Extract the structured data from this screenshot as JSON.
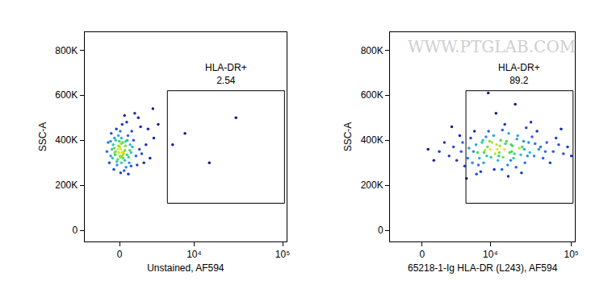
{
  "chart_data": [
    {
      "type": "scatter",
      "xlabel": "Unstained, AF594",
      "ylabel": "SSC-A",
      "x": [
        -300,
        200,
        -500,
        100,
        400,
        -200,
        600,
        -100,
        300,
        0,
        -700,
        800,
        150,
        -400,
        500,
        -50,
        250,
        -600,
        700,
        50,
        1000,
        -800,
        350,
        -250,
        900,
        -150,
        450,
        -350,
        650,
        120,
        1300,
        -900,
        1600,
        200,
        -450,
        1100,
        750,
        -650,
        1800,
        80,
        2200,
        -1000,
        1400,
        550,
        -300,
        2600,
        950,
        -120,
        320,
        30,
        3000,
        1700,
        2000,
        380,
        -550,
        1200,
        2400,
        680,
        -20,
        260,
        5500,
        7800,
        15000,
        30000,
        3500,
        180,
        -80,
        420,
        -380,
        580,
        2900,
        1500,
        820,
        -220,
        140,
        -700,
        900,
        60,
        -420,
        480
      ],
      "values": [
        350000,
        330000,
        380000,
        360000,
        310000,
        290000,
        400000,
        420000,
        340000,
        370000,
        330000,
        355000,
        300000,
        410000,
        280000,
        345000,
        390000,
        360000,
        325000,
        440000,
        370000,
        300000,
        265000,
        450000,
        345000,
        315000,
        375000,
        335000,
        420000,
        385000,
        330000,
        390000,
        360000,
        470000,
        270000,
        400000,
        300000,
        430000,
        340000,
        255000,
        380000,
        350000,
        290000,
        480000,
        400000,
        320000,
        440000,
        360000,
        350000,
        330000,
        410000,
        460000,
        300000,
        510000,
        320000,
        520000,
        450000,
        250000,
        395000,
        320000,
        380000,
        430000,
        300000,
        500000,
        470000,
        345000,
        375000,
        355000,
        345000,
        335000,
        540000,
        500000,
        380000,
        305000,
        410000,
        395000,
        285000,
        325000,
        365000,
        395000
      ],
      "xlim": [
        -3100,
        111000
      ],
      "ylim": [
        -50000,
        880000
      ],
      "xticks": [
        0,
        {
          "value": 10000,
          "label": "10⁴"
        },
        {
          "value": 100000,
          "label": "10⁵"
        }
      ],
      "yticks": [
        0,
        {
          "value": 200000,
          "label": "200K"
        },
        {
          "value": 400000,
          "label": "400K"
        },
        {
          "value": 600000,
          "label": "600K"
        },
        {
          "value": 800000,
          "label": "800K"
        }
      ],
      "grid": false,
      "gate": {
        "label": "HLA-DR+",
        "value": 2.54,
        "x_range": [
          4700,
          105000
        ],
        "y_range": [
          120000,
          620000
        ]
      }
    },
    {
      "type": "scatter",
      "xlabel": "65218-1-Ig HLA-DR (L243), AF594",
      "ylabel": "SSC-A",
      "x": [
        6000,
        9000,
        12000,
        15000,
        8000,
        20000,
        5000,
        25000,
        7000,
        11000,
        18000,
        4000,
        30000,
        10000,
        14000,
        6500,
        22000,
        35000,
        3000,
        9500,
        16000,
        13000,
        40000,
        7500,
        27000,
        5500,
        19000,
        2500,
        50000,
        12500,
        8500,
        17000,
        33000,
        4500,
        10500,
        24000,
        60000,
        6200,
        14500,
        2000,
        21000,
        9200,
        45000,
        11500,
        28000,
        5200,
        15500,
        70000,
        7200,
        18500,
        1500,
        38000,
        13500,
        8200,
        23000,
        80000,
        3800,
        16500,
        31000,
        10200,
        6800,
        26000,
        12200,
        55000,
        4200,
        19500,
        9800,
        90000,
        1000,
        42000,
        14200,
        5800,
        21500,
        11200,
        65000,
        8800,
        29000,
        17500,
        3400,
        48000,
        13200,
        7800,
        36000,
        24500,
        100000,
        500,
        15200,
        6600,
        32000,
        11800,
        20500,
        9400,
        75000,
        4800,
        16800,
        2800,
        26500,
        12800,
        8300,
        18200
      ],
      "values": [
        350000,
        330000,
        380000,
        360000,
        400000,
        340000,
        320000,
        370000,
        290000,
        420000,
        310000,
        350000,
        390000,
        360000,
        270000,
        380000,
        420000,
        330000,
        370000,
        440000,
        395000,
        345000,
        360000,
        260000,
        300000,
        410000,
        375000,
        330000,
        390000,
        310000,
        355000,
        430000,
        415000,
        285000,
        390000,
        335000,
        350000,
        440000,
        325000,
        390000,
        280000,
        370000,
        320000,
        340000,
        455000,
        365000,
        385000,
        380000,
        320000,
        350000,
        350000,
        440000,
        400000,
        300000,
        365000,
        340000,
        420000,
        290000,
        345000,
        325000,
        345000,
        395000,
        360000,
        300000,
        390000,
        320000,
        395000,
        370000,
        310000,
        370000,
        445000,
        300000,
        405000,
        270000,
        410000,
        415000,
        330000,
        345000,
        310000,
        350000,
        375000,
        390000,
        385000,
        255000,
        330000,
        360000,
        470000,
        250000,
        480000,
        520000,
        560000,
        610000,
        450000,
        230000,
        240000,
        460000,
        360000,
        330000,
        345000,
        380000
      ],
      "xlim": [
        -3100,
        111000
      ],
      "ylim": [
        -50000,
        880000
      ],
      "xticks": [
        0,
        {
          "value": 10000,
          "label": "10⁴"
        },
        {
          "value": 100000,
          "label": "10⁵"
        }
      ],
      "yticks": [
        0,
        {
          "value": 200000,
          "label": "200K"
        },
        {
          "value": 400000,
          "label": "400K"
        },
        {
          "value": 600000,
          "label": "600K"
        },
        {
          "value": 800000,
          "label": "800K"
        }
      ],
      "grid": false,
      "gate": {
        "label": "HLA-DR+",
        "value": 89.2,
        "x_range": [
          4700,
          105000
        ],
        "y_range": [
          120000,
          620000
        ]
      },
      "annotations": [
        {
          "text": "WWW.PTGLAB.COM"
        }
      ]
    }
  ]
}
